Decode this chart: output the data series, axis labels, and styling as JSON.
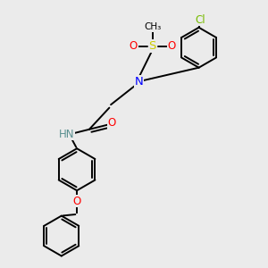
{
  "bg_color": "#ebebeb",
  "atom_colors": {
    "N": "#0000ff",
    "O": "#ff0000",
    "S": "#cccc00",
    "Cl": "#77bb00",
    "C": "#000000",
    "H": "#5a9090"
  },
  "bond_color": "#000000",
  "bond_width": 1.4
}
